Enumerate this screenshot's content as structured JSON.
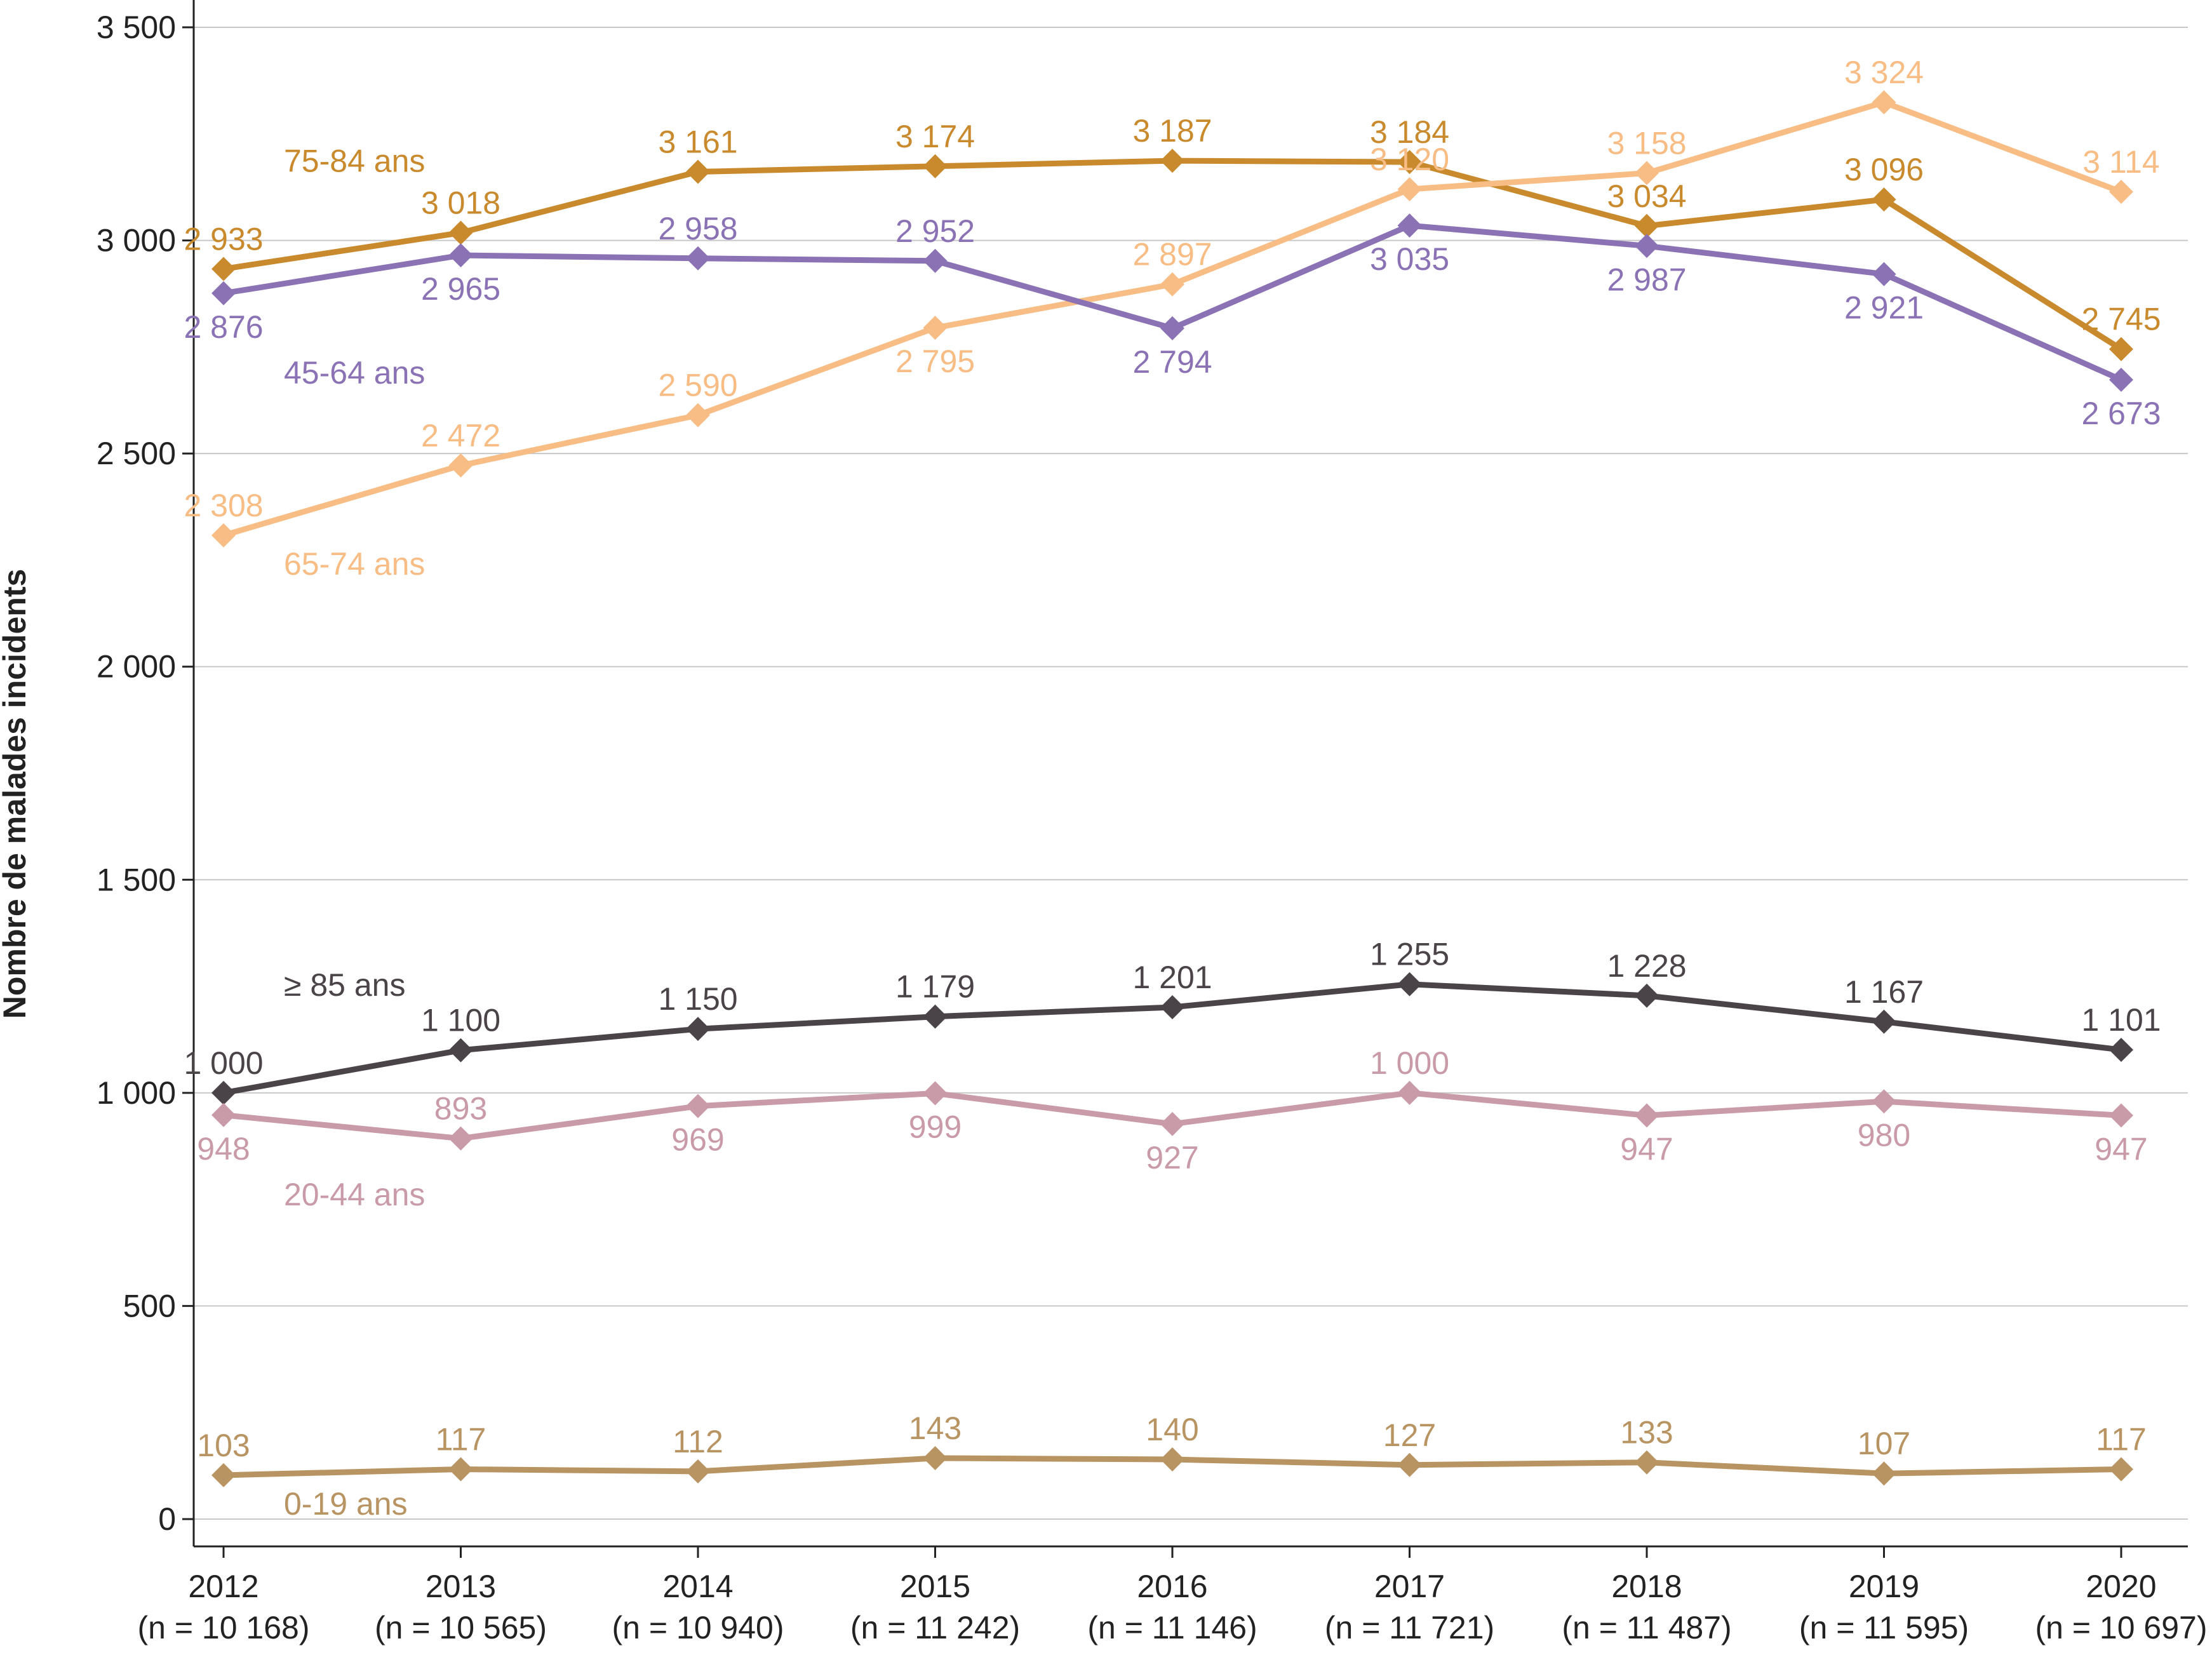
{
  "chart_data": {
    "type": "line",
    "ylabel": "Nombre de malades incidents",
    "xlabel": "",
    "ylim": [
      0,
      3500
    ],
    "yticks": [
      0,
      500,
      1000,
      1500,
      2000,
      2500,
      3000,
      3500
    ],
    "ytick_labels": [
      "0",
      "500",
      "1 000",
      "1 500",
      "2 000",
      "2 500",
      "3 000",
      "3 500"
    ],
    "grid": "horizontal",
    "categories": [
      "2012",
      "2013",
      "2014",
      "2015",
      "2016",
      "2017",
      "2018",
      "2019",
      "2020"
    ],
    "category_counts": [
      "(n = 10 168)",
      "(n = 10 565)",
      "(n = 10 940)",
      "(n = 11 242)",
      "(n = 11 146)",
      "(n = 11 721)",
      "(n = 11 487)",
      "(n = 11 595)",
      "(n = 10 697)"
    ],
    "series": [
      {
        "name": "75-84 ans",
        "color": "#c98a2e",
        "values": [
          2933,
          3018,
          3161,
          3174,
          3187,
          3184,
          3034,
          3096,
          2745
        ],
        "labels": [
          "2 933",
          "3 018",
          "3 161",
          "3 174",
          "3 187",
          "3 184",
          "3 034",
          "3 096",
          "2 745"
        ],
        "label_pos": [
          "above",
          "above",
          "above",
          "above",
          "above",
          "above",
          "above",
          "above",
          "above"
        ]
      },
      {
        "name": "65-74 ans",
        "color": "#f7bd85",
        "values": [
          2308,
          2472,
          2590,
          2795,
          2897,
          3120,
          3158,
          3324,
          3114
        ],
        "labels": [
          "2 308",
          "2 472",
          "2 590",
          "2 795",
          "2 897",
          "3 120",
          "3 158",
          "3 324",
          "3 114"
        ],
        "label_pos": [
          "above",
          "above",
          "above",
          "below",
          "above",
          "above",
          "above",
          "above",
          "above"
        ]
      },
      {
        "name": "45-64 ans",
        "color": "#8a72b5",
        "values": [
          2876,
          2965,
          2958,
          2952,
          2794,
          3035,
          2987,
          2921,
          2673
        ],
        "labels": [
          "2 876",
          "2 965",
          "2 958",
          "2 952",
          "2 794",
          "3 035",
          "2 987",
          "2 921",
          "2 673"
        ],
        "label_pos": [
          "below",
          "below",
          "above",
          "above",
          "below",
          "below",
          "below",
          "below",
          "below"
        ]
      },
      {
        "name": "≥ 85 ans",
        "color": "#4a4348",
        "values": [
          1000,
          1100,
          1150,
          1179,
          1201,
          1255,
          1228,
          1167,
          1101
        ],
        "labels": [
          "1 000",
          "1 100",
          "1 150",
          "1 179",
          "1 201",
          "1 255",
          "1 228",
          "1 167",
          "1 101"
        ],
        "label_pos": [
          "above",
          "above",
          "above",
          "above",
          "above",
          "above",
          "above",
          "above",
          "above"
        ]
      },
      {
        "name": "20-44 ans",
        "color": "#c99aa8",
        "values": [
          948,
          893,
          969,
          999,
          927,
          1000,
          947,
          980,
          947
        ],
        "labels": [
          "948",
          "893",
          "969",
          "999",
          "927",
          "1 000",
          "947",
          "980",
          "947"
        ],
        "label_pos": [
          "below",
          "above",
          "below",
          "below",
          "below",
          "above",
          "below",
          "below",
          "below"
        ]
      },
      {
        "name": "0-19 ans",
        "color": "#b89462",
        "values": [
          103,
          117,
          112,
          143,
          140,
          127,
          133,
          107,
          117
        ],
        "labels": [
          "103",
          "117",
          "112",
          "143",
          "140",
          "127",
          "133",
          "107",
          "117"
        ],
        "label_pos": [
          "above",
          "above",
          "above",
          "above",
          "above",
          "above",
          "above",
          "above",
          "above"
        ]
      }
    ]
  }
}
